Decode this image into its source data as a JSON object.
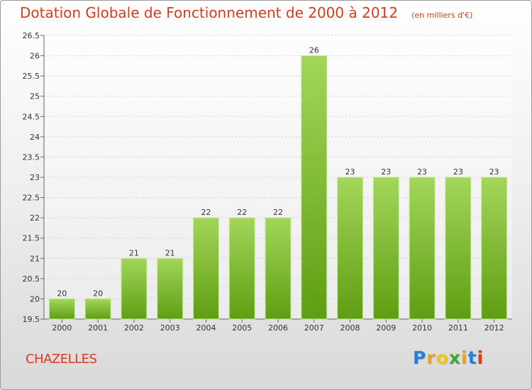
{
  "title": "Dotation Globale de Fonctionnement de 2000 à 2012",
  "subtitle": "(en milliers d'€)",
  "commune": "CHAZELLES",
  "logo": {
    "letters": [
      "P",
      "r",
      "o",
      "x",
      "i",
      "t",
      "i"
    ],
    "colors": [
      "#2a7fd4",
      "#e8a21c",
      "#f0c419",
      "#3aaa35",
      "#e8a21c",
      "#2a7fd4",
      "#d93a1a"
    ]
  },
  "colors": {
    "title": "#d93a1a",
    "bar_light": "#a3d65a",
    "bar_dark": "#5e9e12"
  },
  "chart_data": {
    "type": "bar",
    "categories": [
      "2000",
      "2001",
      "2002",
      "2003",
      "2004",
      "2005",
      "2006",
      "2007",
      "2008",
      "2009",
      "2010",
      "2011",
      "2012"
    ],
    "values": [
      20,
      20,
      21,
      21,
      22,
      22,
      22,
      26,
      23,
      23,
      23,
      23,
      23
    ],
    "data_labels": [
      "20",
      "20",
      "21",
      "21",
      "22",
      "22",
      "22",
      "26",
      "23",
      "23",
      "23",
      "23",
      "23"
    ],
    "ylim": [
      19.5,
      26.5
    ],
    "yticks": [
      "19.5",
      "20",
      "20.5",
      "21",
      "21.5",
      "22",
      "22.5",
      "23",
      "23.5",
      "24",
      "24.5",
      "25",
      "25.5",
      "26",
      "26.5"
    ],
    "grid": true,
    "xlabel": "",
    "ylabel": ""
  }
}
